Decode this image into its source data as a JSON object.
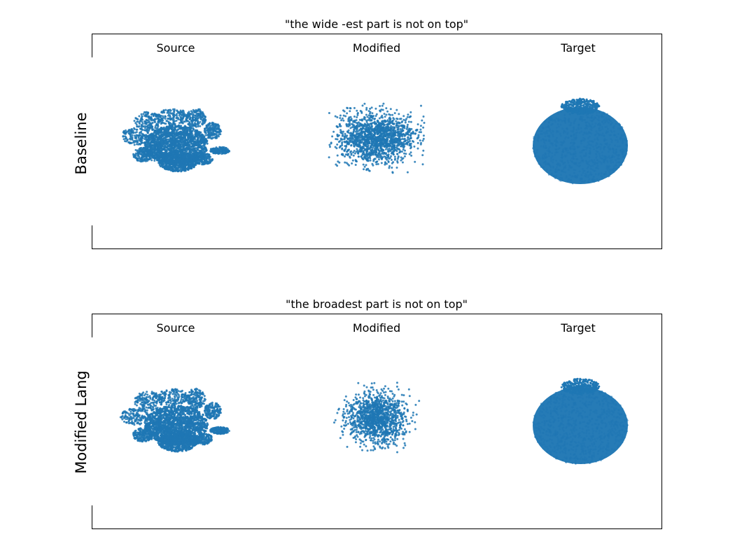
{
  "chart_data": [
    {
      "type": "scatter",
      "title": "\"the wide -est part is not on top\"",
      "ylabel": "Baseline",
      "grid": false,
      "series": [
        {
          "name": "Source",
          "shape": "irregular-leafy-blob-with-rounded-base",
          "approx_points": 2048
        },
        {
          "name": "Modified",
          "shape": "diffuse-ellipse-cloud",
          "approx_points": 2048
        },
        {
          "name": "Target",
          "shape": "ellipse-with-small-cap-on-top",
          "approx_points": 2048
        }
      ]
    },
    {
      "type": "scatter",
      "title": "\"the broadest part is not on top\"",
      "ylabel": "Modified Lang",
      "grid": false,
      "series": [
        {
          "name": "Source",
          "shape": "irregular-leafy-blob-with-rounded-base",
          "approx_points": 2048
        },
        {
          "name": "Modified",
          "shape": "diffuse-round-cloud",
          "approx_points": 2048
        },
        {
          "name": "Target",
          "shape": "ellipse-with-small-cap-on-top",
          "approx_points": 2048
        }
      ]
    }
  ],
  "colors": {
    "points": "#1f77b4",
    "frame": "#000000",
    "text": "#000000",
    "background": "#ffffff"
  }
}
